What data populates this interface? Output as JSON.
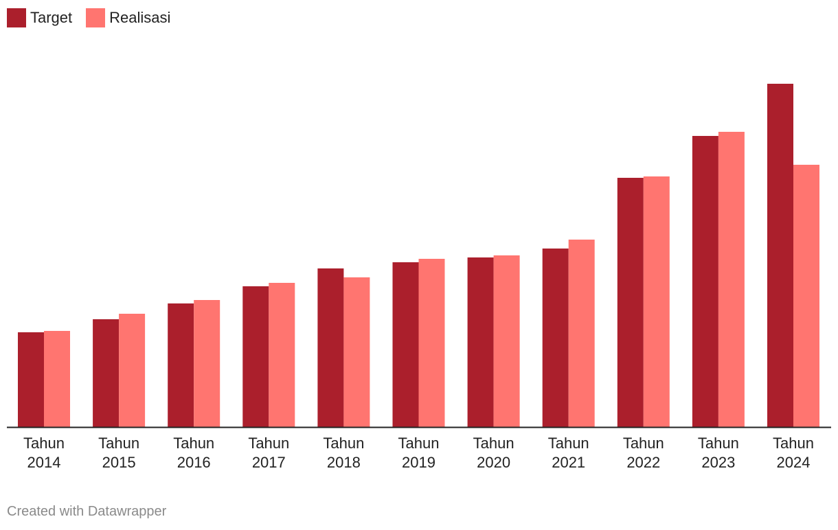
{
  "chart_data": {
    "type": "bar",
    "categories": [
      [
        "Tahun",
        "2014"
      ],
      [
        "Tahun",
        "2015"
      ],
      [
        "Tahun",
        "2016"
      ],
      [
        "Tahun",
        "2017"
      ],
      [
        "Tahun",
        "2018"
      ],
      [
        "Tahun",
        "2019"
      ],
      [
        "Tahun",
        "2020"
      ],
      [
        "Tahun",
        "2021"
      ],
      [
        "Tahun",
        "2022"
      ],
      [
        "Tahun",
        "2023"
      ],
      [
        "Tahun",
        "2024"
      ]
    ],
    "series": [
      {
        "name": "Target",
        "color": "#ab1f2c",
        "values": [
          138,
          157,
          180,
          205,
          231,
          240,
          247,
          260,
          363,
          424,
          500
        ]
      },
      {
        "name": "Realisasi",
        "color": "#ff7570",
        "values": [
          140,
          165,
          185,
          210,
          218,
          245,
          250,
          273,
          365,
          430,
          382
        ]
      }
    ],
    "ylim": [
      0,
      500
    ],
    "grid": false,
    "legend": "top-left",
    "footer": "Created with Datawrapper"
  }
}
